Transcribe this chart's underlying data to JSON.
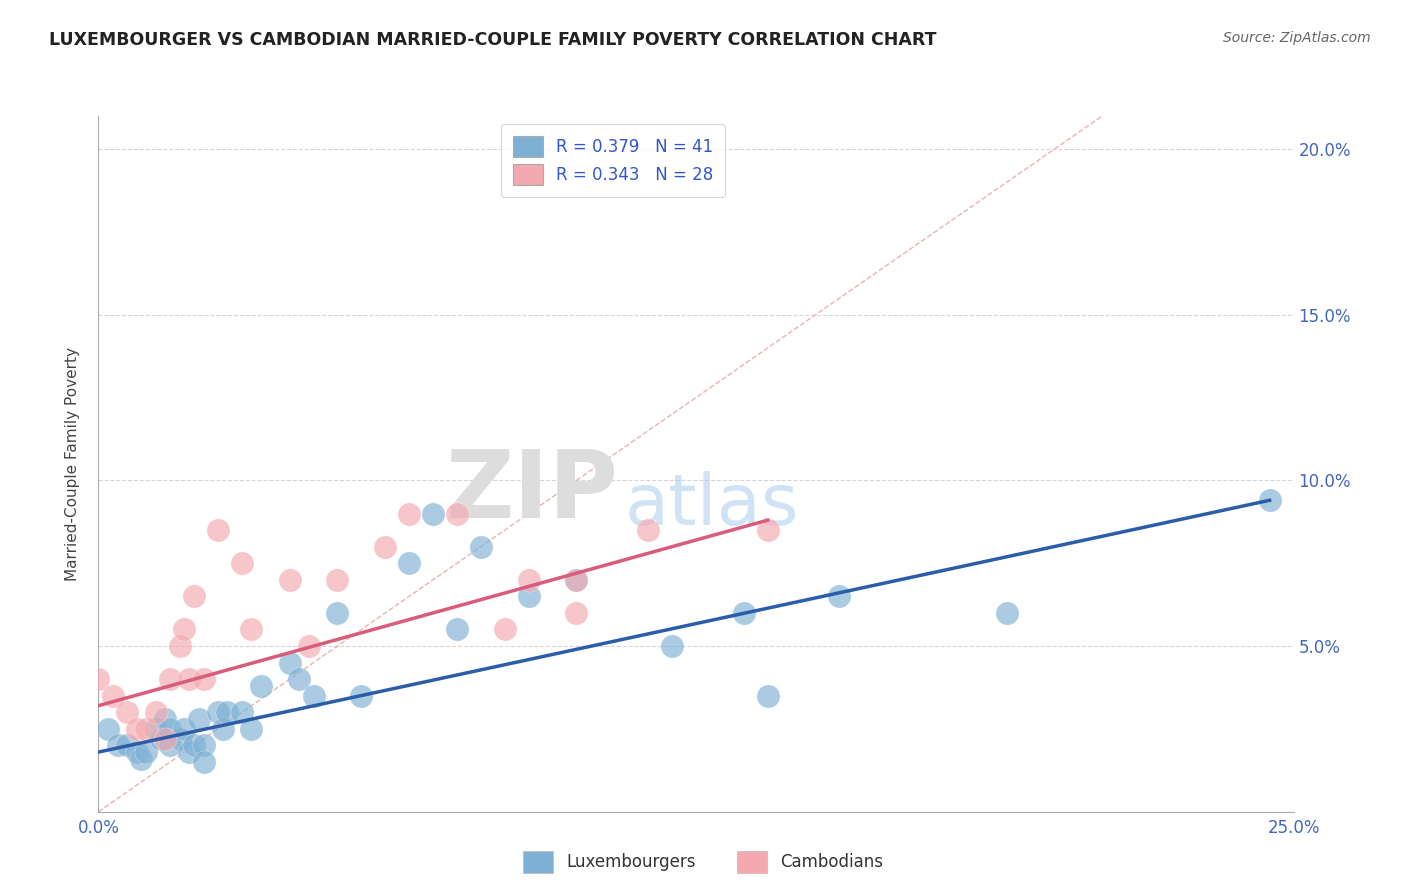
{
  "title": "LUXEMBOURGER VS CAMBODIAN MARRIED-COUPLE FAMILY POVERTY CORRELATION CHART",
  "source": "Source: ZipAtlas.com",
  "ylabel": "Married-Couple Family Poverty",
  "xlim": [
    0.0,
    0.25
  ],
  "ylim": [
    0.0,
    0.21
  ],
  "x_ticks": [
    0.0,
    0.05,
    0.1,
    0.15,
    0.2,
    0.25
  ],
  "x_tick_labels": [
    "0.0%",
    "",
    "",
    "",
    "",
    "25.0%"
  ],
  "y_ticks": [
    0.0,
    0.05,
    0.1,
    0.15,
    0.2
  ],
  "y_right_labels": [
    "",
    "5.0%",
    "10.0%",
    "15.0%",
    "20.0%"
  ],
  "lux_R": 0.379,
  "lux_N": 41,
  "cam_R": 0.343,
  "cam_N": 28,
  "lux_color": "#7EB0D5",
  "cam_color": "#F4A8B0",
  "lux_line_color": "#2B5DA8",
  "cam_line_color": "#D95C7A",
  "ref_line_color": "#E8AAAA",
  "background_color": "#FFFFFF",
  "grid_color": "#CCCCCC",
  "lux_scatter_x": [
    0.002,
    0.004,
    0.006,
    0.008,
    0.009,
    0.01,
    0.012,
    0.013,
    0.014,
    0.015,
    0.015,
    0.017,
    0.018,
    0.019,
    0.02,
    0.021,
    0.022,
    0.022,
    0.025,
    0.026,
    0.027,
    0.03,
    0.032,
    0.034,
    0.04,
    0.042,
    0.045,
    0.05,
    0.055,
    0.065,
    0.07,
    0.075,
    0.08,
    0.09,
    0.1,
    0.12,
    0.135,
    0.14,
    0.155,
    0.19,
    0.245
  ],
  "lux_scatter_y": [
    0.025,
    0.02,
    0.02,
    0.018,
    0.016,
    0.018,
    0.025,
    0.022,
    0.028,
    0.02,
    0.025,
    0.022,
    0.025,
    0.018,
    0.02,
    0.028,
    0.02,
    0.015,
    0.03,
    0.025,
    0.03,
    0.03,
    0.025,
    0.038,
    0.045,
    0.04,
    0.035,
    0.06,
    0.035,
    0.075,
    0.09,
    0.055,
    0.08,
    0.065,
    0.07,
    0.05,
    0.06,
    0.035,
    0.065,
    0.06,
    0.094
  ],
  "cam_scatter_x": [
    0.0,
    0.003,
    0.006,
    0.008,
    0.01,
    0.012,
    0.014,
    0.015,
    0.017,
    0.018,
    0.019,
    0.02,
    0.022,
    0.025,
    0.03,
    0.032,
    0.04,
    0.044,
    0.05,
    0.06,
    0.065,
    0.075,
    0.085,
    0.09,
    0.1,
    0.1,
    0.115,
    0.14
  ],
  "cam_scatter_y": [
    0.04,
    0.035,
    0.03,
    0.025,
    0.025,
    0.03,
    0.022,
    0.04,
    0.05,
    0.055,
    0.04,
    0.065,
    0.04,
    0.085,
    0.075,
    0.055,
    0.07,
    0.05,
    0.07,
    0.08,
    0.09,
    0.09,
    0.055,
    0.07,
    0.07,
    0.06,
    0.085,
    0.085
  ],
  "lux_trend_x": [
    0.0,
    0.245
  ],
  "lux_trend_y": [
    0.018,
    0.094
  ],
  "cam_trend_x": [
    0.0,
    0.14
  ],
  "cam_trend_y": [
    0.032,
    0.088
  ],
  "ref_line_x": [
    0.0,
    0.21
  ],
  "ref_line_y": [
    0.0,
    0.21
  ],
  "watermark_zip": "ZIP",
  "watermark_atlas": "atlas"
}
